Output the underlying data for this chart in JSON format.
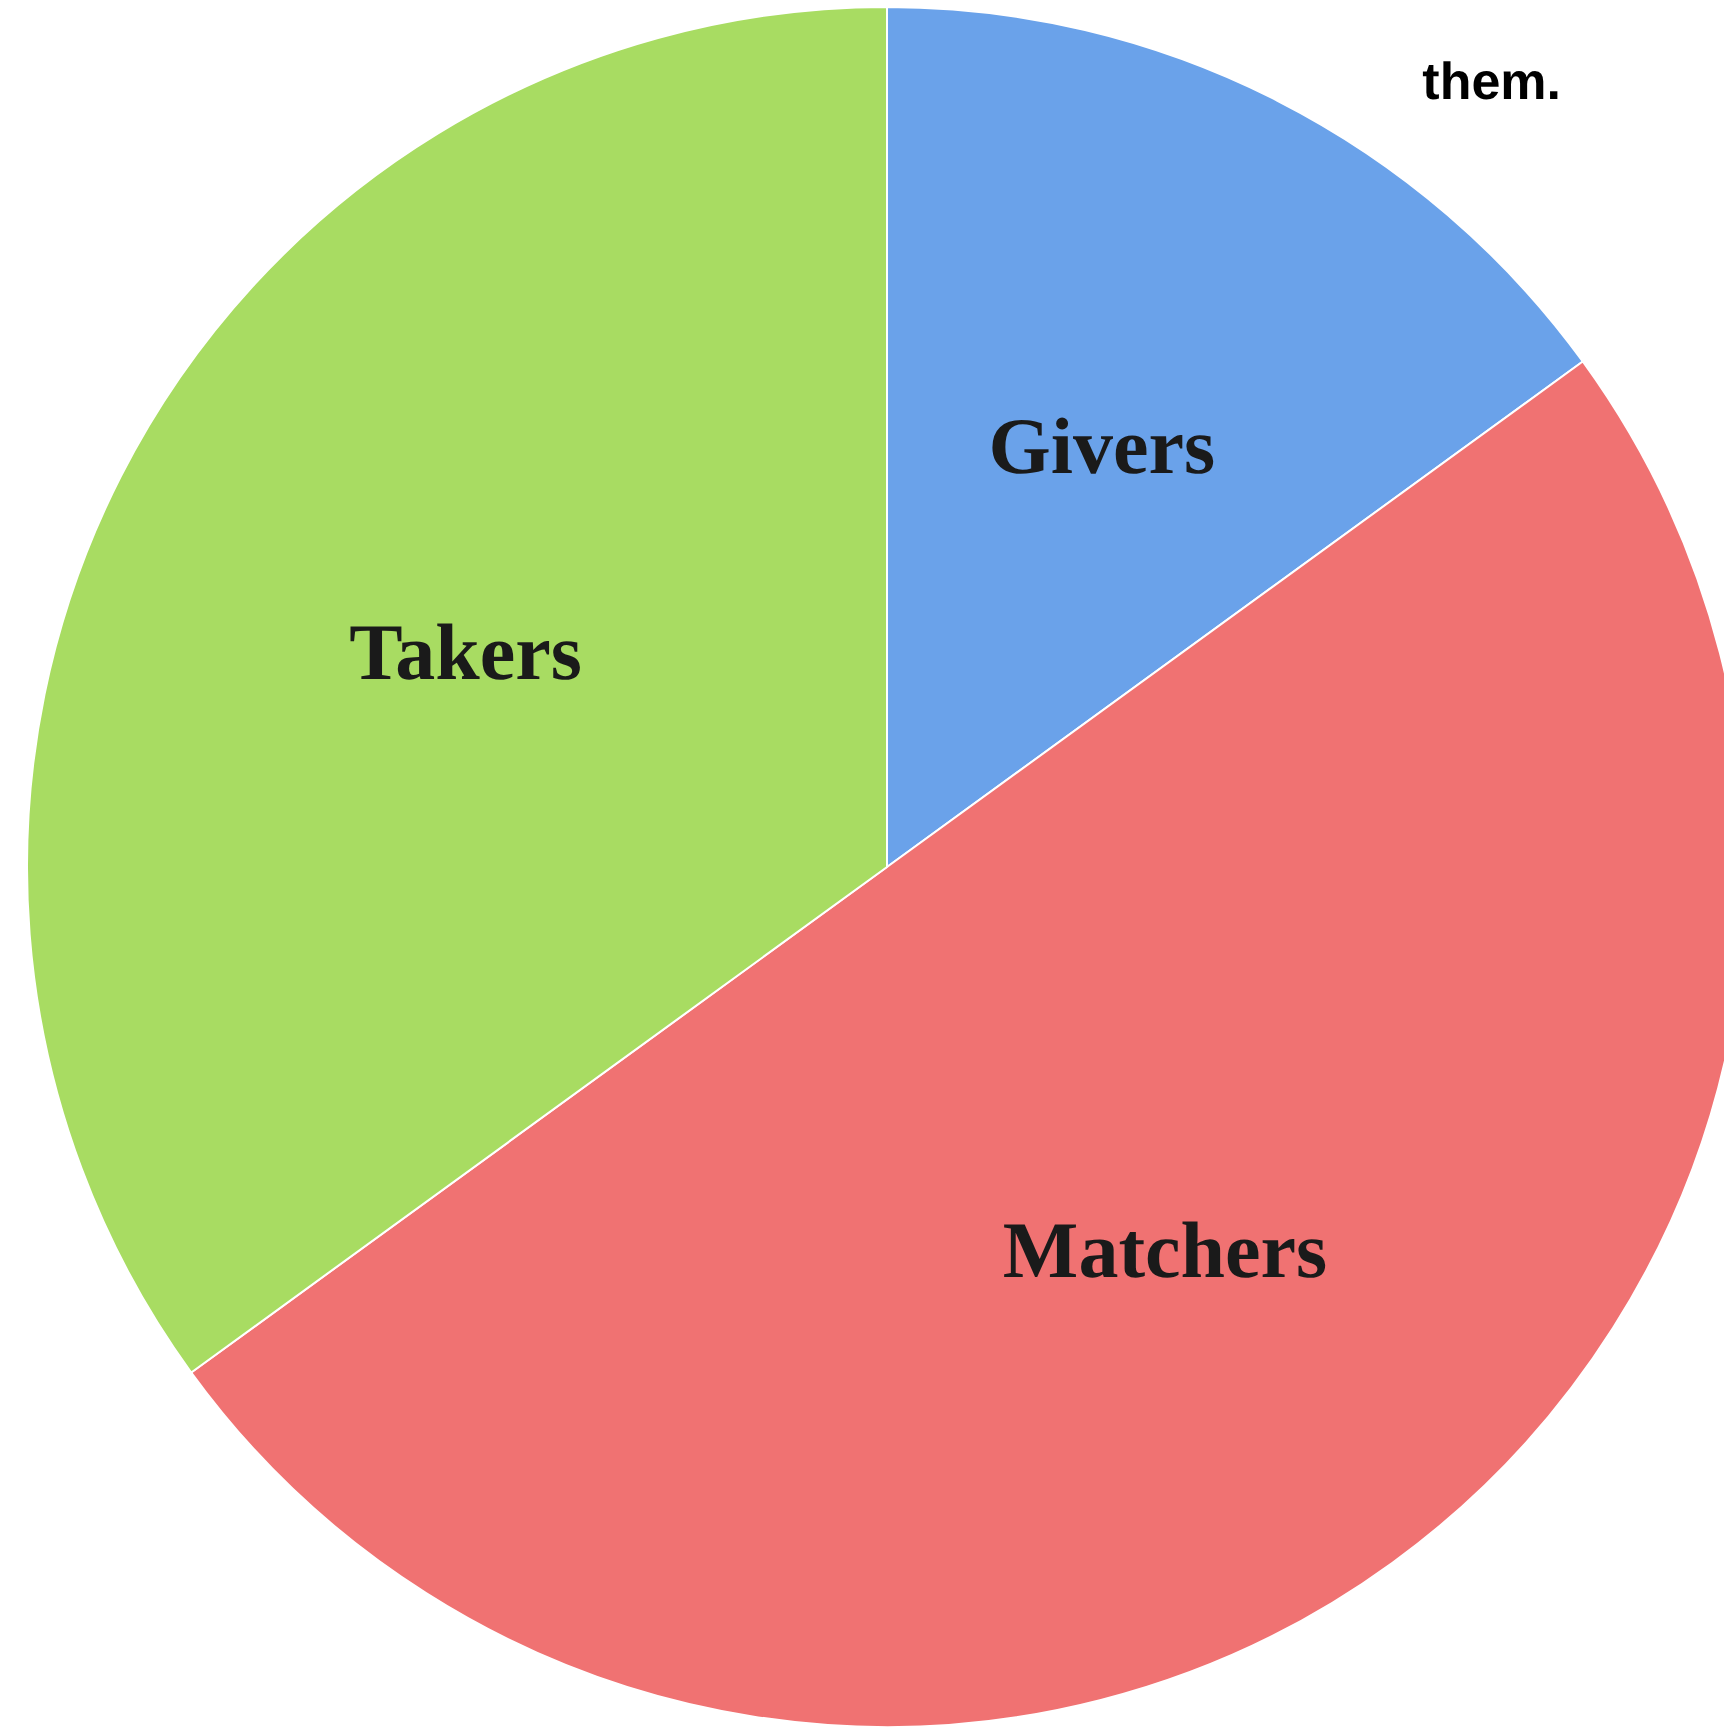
{
  "chart_data": {
    "type": "pie",
    "categories": [
      "Givers",
      "Matchers",
      "Takers"
    ],
    "values": [
      15,
      50,
      35
    ],
    "colors": [
      "#6aa2ea",
      "#f07272",
      "#a8dc62"
    ],
    "annotations": [
      "them."
    ]
  }
}
